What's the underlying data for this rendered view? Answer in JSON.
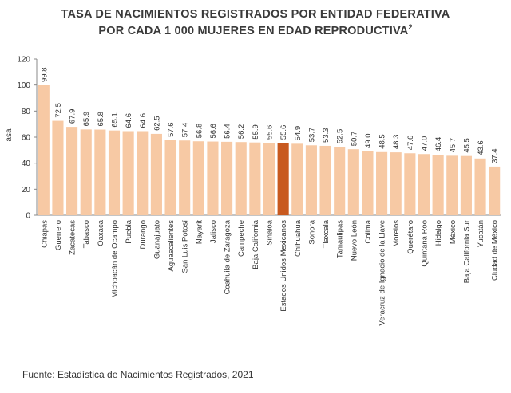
{
  "title_line1": "TASA DE NACIMIENTOS REGISTRADOS POR ENTIDAD FEDERATIVA",
  "title_line2": "POR CADA 1 000 MUJERES EN EDAD REPRODUCTIVA",
  "title_sup": "2",
  "source": "Fuente: Estadística de Nacimientos Registrados, 2021",
  "colors": {
    "bar": "#f7c9a4",
    "highlight": "#c8591f",
    "axis": "#888888"
  },
  "chart_data": {
    "type": "bar",
    "ylabel": "Tasa",
    "ylim": [
      0,
      120
    ],
    "yticks": [
      0,
      20,
      40,
      60,
      80,
      100,
      120
    ],
    "grid": false,
    "highlight": "Estados Unidos Mexicanos",
    "categories": [
      "Chiapas",
      "Guerrero",
      "Zacatecas",
      "Tabasco",
      "Oaxaca",
      "Michoacán de Ocampo",
      "Puebla",
      "Durango",
      "Guanajuato",
      "Aguascalientes",
      "San Luis Potosí",
      "Nayarit",
      "Jalisco",
      "Coahuila de Zaragoza",
      "Campeche",
      "Baja California",
      "Sinaloa",
      "Estados Unidos Mexicanos",
      "Chihuahua",
      "Sonora",
      "Tlaxcala",
      "Tamaulipas",
      "Nuevo León",
      "Colima",
      "Veracruz de Ignacio de la Llave",
      "Morelos",
      "Querétaro",
      "Quintana Roo",
      "Hidalgo",
      "México",
      "Baja California Sur",
      "Yucatán",
      "Ciudad de México"
    ],
    "values": [
      99.8,
      72.5,
      67.9,
      65.9,
      65.8,
      65.1,
      64.6,
      64.6,
      62.5,
      57.6,
      57.4,
      56.8,
      56.6,
      56.4,
      56.2,
      55.9,
      55.6,
      55.6,
      54.9,
      53.7,
      53.3,
      52.5,
      50.7,
      49.0,
      48.5,
      48.3,
      47.6,
      47.0,
      46.4,
      45.7,
      45.5,
      43.6,
      37.4
    ],
    "value_labels": [
      "99.8",
      "72.5",
      "67.9",
      "65.9",
      "65.8",
      "65.1",
      "64.6",
      "64.6",
      "62.5",
      "57.6",
      "57.4",
      "56.8",
      "56.6",
      "56.4",
      "56.2",
      "55.9",
      "55.6",
      "55.6",
      "54.9",
      "53.7",
      "53.3",
      "52.5",
      "50.7",
      "49.0",
      "48.5",
      "48.3",
      "47.6",
      "47.0",
      "46.4",
      "45.7",
      "45.5",
      "43.6",
      "37.4"
    ]
  }
}
